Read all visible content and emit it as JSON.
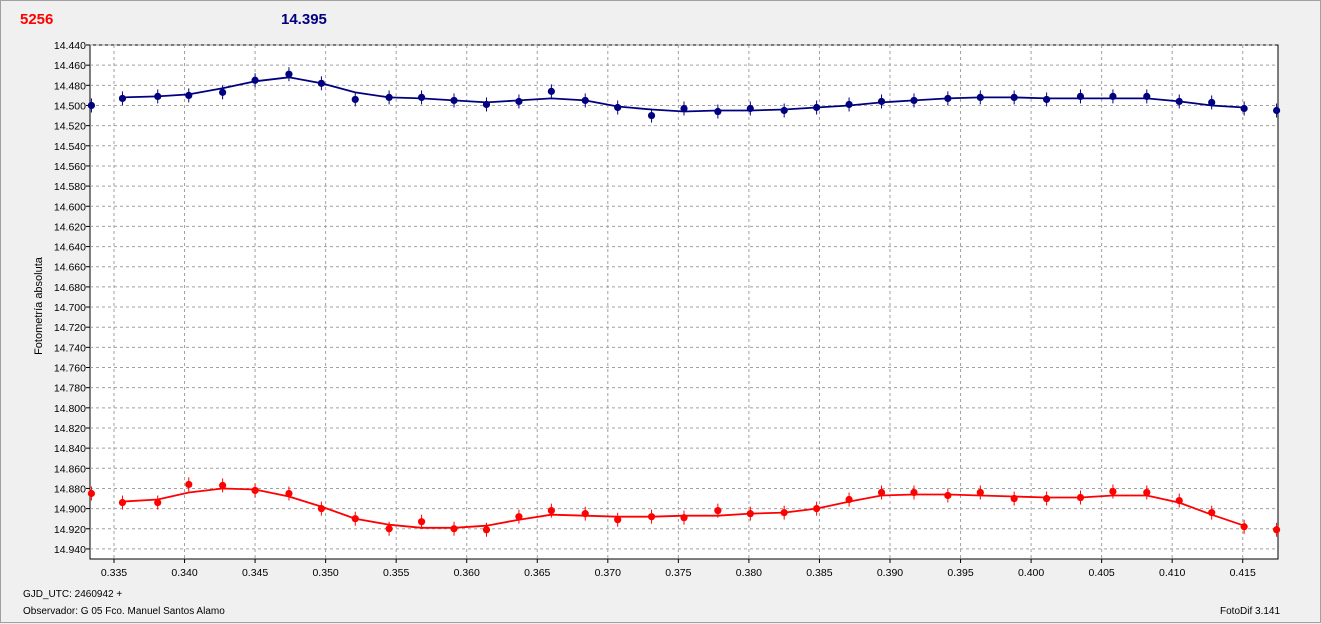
{
  "header": {
    "left_value": "5256",
    "right_value": "14.395",
    "left_color": "#ff0000",
    "right_color": "#000080"
  },
  "footer": {
    "gjd": "GJD_UTC: 2460942 +",
    "observer": "Observador: G 05  Fco. Manuel Santos Alamo",
    "version": "FotoDif 3.141"
  },
  "chart_data": {
    "type": "line",
    "ylabel": "Fotometría absoluta",
    "xlabel": "",
    "xlim": [
      0.3333,
      0.4175
    ],
    "ylim": [
      14.44,
      14.95
    ],
    "y_inverted": true,
    "grid": true,
    "x_ticks": [
      "0.335",
      "0.340",
      "0.345",
      "0.350",
      "0.355",
      "0.360",
      "0.365",
      "0.370",
      "0.375",
      "0.380",
      "0.385",
      "0.390",
      "0.395",
      "0.400",
      "0.405",
      "0.410",
      "0.415"
    ],
    "y_ticks": [
      "14.440",
      "14.460",
      "14.480",
      "14.500",
      "14.520",
      "14.540",
      "14.560",
      "14.580",
      "14.600",
      "14.620",
      "14.640",
      "14.660",
      "14.680",
      "14.700",
      "14.720",
      "14.740",
      "14.760",
      "14.780",
      "14.800",
      "14.820",
      "14.840",
      "14.860",
      "14.880",
      "14.900",
      "14.920",
      "14.940"
    ],
    "series": [
      {
        "color": "#000080",
        "x": [
          0.3334,
          0.3356,
          0.3381,
          0.3403,
          0.3427,
          0.345,
          0.3474,
          0.3497,
          0.3521,
          0.3545,
          0.3568,
          0.3591,
          0.3614,
          0.3637,
          0.366,
          0.3684,
          0.3707,
          0.3731,
          0.3754,
          0.3778,
          0.3801,
          0.3825,
          0.3848,
          0.3871,
          0.3894,
          0.3917,
          0.3941,
          0.3964,
          0.3988,
          0.4011,
          0.4035,
          0.4058,
          0.4082,
          0.4105,
          0.4128,
          0.4151,
          0.4174
        ],
        "y": [
          14.5,
          14.493,
          14.491,
          14.49,
          14.487,
          14.475,
          14.469,
          14.478,
          14.494,
          14.492,
          14.492,
          14.495,
          14.499,
          14.496,
          14.486,
          14.495,
          14.502,
          14.51,
          14.503,
          14.506,
          14.503,
          14.505,
          14.502,
          14.499,
          14.496,
          14.495,
          14.493,
          14.492,
          14.492,
          14.494,
          14.491,
          14.491,
          14.491,
          14.496,
          14.497,
          14.503,
          14.505
        ],
        "fit": [
          [
            0.3356,
            14.492
          ],
          [
            0.3381,
            14.491
          ],
          [
            0.3403,
            14.489
          ],
          [
            0.3427,
            14.483
          ],
          [
            0.345,
            14.476
          ],
          [
            0.3474,
            14.472
          ],
          [
            0.3497,
            14.478
          ],
          [
            0.3521,
            14.487
          ],
          [
            0.3545,
            14.492
          ],
          [
            0.3568,
            14.493
          ],
          [
            0.3591,
            14.495
          ],
          [
            0.3614,
            14.497
          ],
          [
            0.3637,
            14.495
          ],
          [
            0.366,
            14.493
          ],
          [
            0.3684,
            14.495
          ],
          [
            0.3707,
            14.501
          ],
          [
            0.3731,
            14.504
          ],
          [
            0.3754,
            14.506
          ],
          [
            0.3778,
            14.505
          ],
          [
            0.3801,
            14.505
          ],
          [
            0.3825,
            14.504
          ],
          [
            0.3848,
            14.502
          ],
          [
            0.3871,
            14.5
          ],
          [
            0.3894,
            14.497
          ],
          [
            0.3917,
            14.495
          ],
          [
            0.3941,
            14.493
          ],
          [
            0.3964,
            14.492
          ],
          [
            0.3988,
            14.492
          ],
          [
            0.4011,
            14.493
          ],
          [
            0.4035,
            14.493
          ],
          [
            0.4058,
            14.493
          ],
          [
            0.4082,
            14.493
          ],
          [
            0.4105,
            14.496
          ],
          [
            0.4128,
            14.5
          ],
          [
            0.4151,
            14.502
          ]
        ]
      },
      {
        "color": "#ff0000",
        "x": [
          0.3334,
          0.3356,
          0.3381,
          0.3403,
          0.3427,
          0.345,
          0.3474,
          0.3497,
          0.3521,
          0.3545,
          0.3568,
          0.3591,
          0.3614,
          0.3637,
          0.366,
          0.3684,
          0.3707,
          0.3731,
          0.3754,
          0.3778,
          0.3801,
          0.3825,
          0.3848,
          0.3871,
          0.3894,
          0.3917,
          0.3941,
          0.3964,
          0.3988,
          0.4011,
          0.4035,
          0.4058,
          0.4082,
          0.4105,
          0.4128,
          0.4151,
          0.4174
        ],
        "y": [
          14.885,
          14.894,
          14.894,
          14.876,
          14.877,
          14.882,
          14.885,
          14.9,
          14.91,
          14.92,
          14.913,
          14.92,
          14.921,
          14.908,
          14.902,
          14.905,
          14.911,
          14.908,
          14.909,
          14.902,
          14.905,
          14.904,
          14.9,
          14.891,
          14.884,
          14.884,
          14.887,
          14.884,
          14.89,
          14.89,
          14.889,
          14.883,
          14.884,
          14.892,
          14.904,
          14.918,
          14.921
        ],
        "fit": [
          [
            0.3356,
            14.893
          ],
          [
            0.3381,
            14.891
          ],
          [
            0.3403,
            14.884
          ],
          [
            0.3427,
            14.88
          ],
          [
            0.345,
            14.881
          ],
          [
            0.3474,
            14.888
          ],
          [
            0.3497,
            14.898
          ],
          [
            0.3521,
            14.91
          ],
          [
            0.3545,
            14.916
          ],
          [
            0.3568,
            14.919
          ],
          [
            0.3591,
            14.919
          ],
          [
            0.3614,
            14.917
          ],
          [
            0.3637,
            14.911
          ],
          [
            0.366,
            14.906
          ],
          [
            0.3684,
            14.907
          ],
          [
            0.3707,
            14.908
          ],
          [
            0.3731,
            14.908
          ],
          [
            0.3754,
            14.907
          ],
          [
            0.3778,
            14.907
          ],
          [
            0.3801,
            14.905
          ],
          [
            0.3825,
            14.904
          ],
          [
            0.3848,
            14.9
          ],
          [
            0.3871,
            14.893
          ],
          [
            0.3894,
            14.887
          ],
          [
            0.3917,
            14.886
          ],
          [
            0.3941,
            14.886
          ],
          [
            0.3964,
            14.887
          ],
          [
            0.3988,
            14.888
          ],
          [
            0.4011,
            14.889
          ],
          [
            0.4035,
            14.889
          ],
          [
            0.4058,
            14.887
          ],
          [
            0.4082,
            14.887
          ],
          [
            0.4105,
            14.894
          ],
          [
            0.4128,
            14.906
          ],
          [
            0.4151,
            14.917
          ]
        ]
      }
    ]
  }
}
